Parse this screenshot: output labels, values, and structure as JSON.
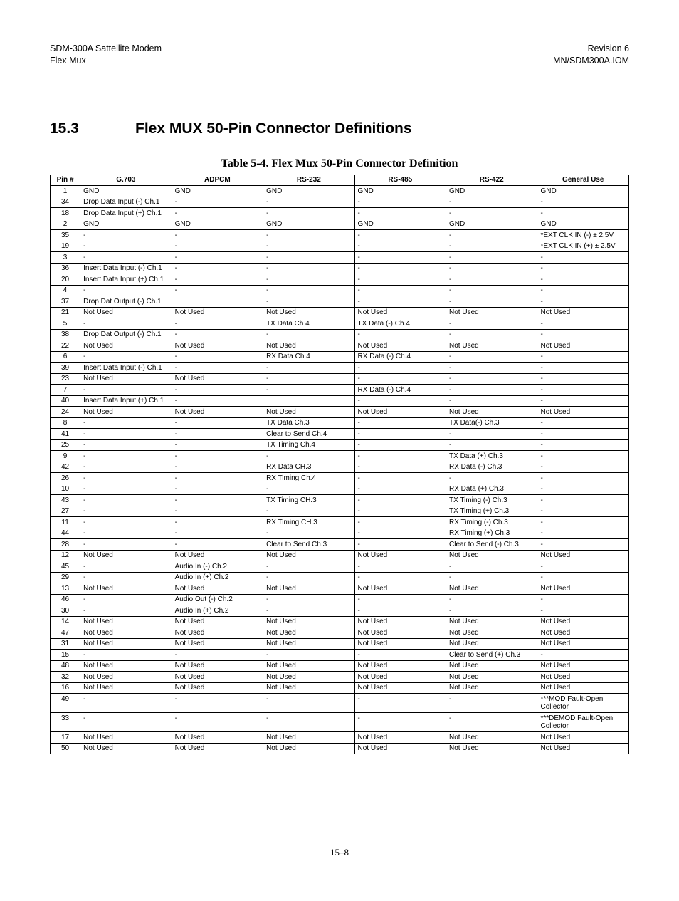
{
  "header": {
    "left1": "SDM-300A Sattellite Modem",
    "right1": "Revision 6",
    "left2": "Flex Mux",
    "right2": "MN/SDM300A.IOM"
  },
  "section": {
    "number": "15.3",
    "title": "Flex MUX 50-Pin Connector Definitions"
  },
  "tableCaption": "Table 5-4.  Flex Mux 50-Pin Connector Definition",
  "columns": [
    "Pin #",
    "G.703",
    "ADPCM",
    "RS-232",
    "RS-485",
    "RS-422",
    "General Use"
  ],
  "rows": [
    [
      "1",
      "GND",
      "GND",
      "GND",
      "GND",
      "GND",
      "GND"
    ],
    [
      "34",
      "Drop Data Input (-) Ch.1",
      "-",
      "-",
      "-",
      "-",
      "-"
    ],
    [
      "18",
      "Drop Data Input (+) Ch.1",
      "-",
      "-",
      "-",
      "-",
      "-"
    ],
    [
      "2",
      "GND",
      "GND",
      "GND",
      "GND",
      "GND",
      "GND"
    ],
    [
      "35",
      "-",
      "-",
      "-",
      "-",
      "-",
      "*EXT CLK IN (-) ± 2.5V"
    ],
    [
      "19",
      "-",
      "-",
      "-",
      "-",
      "-",
      "*EXT CLK IN (+) ± 2.5V"
    ],
    [
      "3",
      "-",
      "-",
      "-",
      "-",
      "-",
      "-"
    ],
    [
      "36",
      "Insert Data Input (-) Ch.1",
      "-",
      "-",
      "-",
      "-",
      "-"
    ],
    [
      "20",
      "Insert Data Input (+) Ch.1",
      "-",
      "-",
      "-",
      "-",
      "-"
    ],
    [
      "4",
      "-",
      "-",
      "-",
      "-",
      "-",
      "-"
    ],
    [
      "37",
      "Drop Dat Output (-) Ch.1",
      "",
      "-",
      "-",
      "-",
      "-"
    ],
    [
      "21",
      "Not Used",
      "Not Used",
      "Not Used",
      "Not Used",
      "Not Used",
      "Not Used"
    ],
    [
      "5",
      "-",
      "-",
      "TX Data Ch 4",
      "TX Data (-) Ch.4",
      "-",
      "-"
    ],
    [
      "38",
      "Drop Dat Output (-) Ch.1",
      "-",
      "-",
      "-",
      "-",
      "-"
    ],
    [
      "22",
      "Not Used",
      "Not Used",
      "Not Used",
      "Not Used",
      "Not Used",
      "Not Used"
    ],
    [
      "6",
      "-",
      "-",
      "RX Data Ch.4",
      "RX Data (-) Ch.4",
      "-",
      "-"
    ],
    [
      "39",
      "Insert Data Input (-) Ch.1",
      "-",
      "-",
      "-",
      "-",
      "-"
    ],
    [
      "23",
      "Not Used",
      "Not Used",
      "-",
      "-",
      "-",
      "-"
    ],
    [
      "7",
      "-",
      "-",
      "-",
      "RX Data (-) Ch.4",
      "-",
      "-"
    ],
    [
      "40",
      "Insert Data Input (+) Ch.1",
      "-",
      "",
      "-",
      "-",
      "-"
    ],
    [
      "24",
      "Not Used",
      "Not Used",
      "Not Used",
      "Not Used",
      "Not Used",
      "Not Used"
    ],
    [
      "8",
      "-",
      "-",
      "TX Data Ch.3",
      "-",
      "TX Data(-) Ch.3",
      "-"
    ],
    [
      "41",
      "-",
      "-",
      "Clear to Send Ch.4",
      "-",
      "-",
      "-"
    ],
    [
      "25",
      "-",
      "-",
      "TX Timing Ch.4",
      "-",
      "-",
      "-"
    ],
    [
      "9",
      "-",
      "-",
      "-",
      "-",
      "TX Data (+) Ch.3",
      "-"
    ],
    [
      "42",
      "-",
      "-",
      "RX Data CH.3",
      "-",
      "RX Data (-) Ch.3",
      "-"
    ],
    [
      "26",
      "-",
      "-",
      "RX Timing Ch.4",
      "-",
      "-",
      "-"
    ],
    [
      "10",
      "-",
      "-",
      "-",
      "-",
      "RX Data (+) Ch.3",
      "-"
    ],
    [
      "43",
      "-",
      "-",
      "TX Timing CH.3",
      "-",
      "TX Timing (-) Ch.3",
      "-"
    ],
    [
      "27",
      "-",
      "-",
      "-",
      "-",
      "TX Timing (+) Ch.3",
      "-"
    ],
    [
      "11",
      "-",
      "-",
      "RX Timing CH.3",
      "-",
      "RX Timing (-) Ch.3",
      "-"
    ],
    [
      "44",
      "-",
      "-",
      "-",
      "-",
      "RX Timing (+) Ch.3",
      "-"
    ],
    [
      "28",
      "-",
      "-",
      "Clear to Send Ch.3",
      "-",
      "Clear to Send (-) Ch.3",
      "-"
    ],
    [
      "12",
      "Not Used",
      "Not Used",
      "Not Used",
      "Not Used",
      "Not Used",
      "Not Used"
    ],
    [
      "45",
      "-",
      "Audio In (-) Ch.2",
      "-",
      "-",
      "-",
      "-"
    ],
    [
      "29",
      "-",
      "Audio In (+) Ch.2",
      "-",
      "-",
      "-",
      "-"
    ],
    [
      "13",
      "Not Used",
      "Not Used",
      "Not Used",
      "Not Used",
      "Not Used",
      "Not Used"
    ],
    [
      "46",
      "-",
      "Audio Out (-) Ch.2",
      "-",
      "-",
      "-",
      "-"
    ],
    [
      "30",
      "-",
      "Audio In (+) Ch.2",
      "-",
      "-",
      "-",
      "-"
    ],
    [
      "14",
      "Not Used",
      "Not Used",
      "Not Used",
      "Not Used",
      "Not Used",
      "Not Used"
    ],
    [
      "47",
      "Not Used",
      "Not Used",
      "Not Used",
      "Not Used",
      "Not Used",
      "Not Used"
    ],
    [
      "31",
      "Not Used",
      "Not Used",
      "Not Used",
      "Not Used",
      "Not Used",
      "Not Used"
    ],
    [
      "15",
      "-",
      "-",
      "-",
      "-",
      "Clear to Send (+) Ch.3",
      "-"
    ],
    [
      "48",
      "Not Used",
      "Not Used",
      "Not Used",
      "Not Used",
      "Not Used",
      "Not Used"
    ],
    [
      "32",
      "Not Used",
      "Not Used",
      "Not Used",
      "Not Used",
      "Not Used",
      "Not Used"
    ],
    [
      "16",
      "Not Used",
      "Not Used",
      "Not Used",
      "Not Used",
      "Not Used",
      "Not Used"
    ],
    [
      "49",
      "-",
      "-",
      "-",
      "-",
      "-",
      "***MOD Fault-Open Collector"
    ],
    [
      "33",
      "-",
      "-",
      "-",
      "-",
      "-",
      "***DEMOD Fault-Open Collector"
    ],
    [
      "17",
      "Not Used",
      "Not Used",
      "Not Used",
      "Not Used",
      "Not Used",
      "Not Used"
    ],
    [
      "50",
      "Not Used",
      "Not Used",
      "Not Used",
      "Not Used",
      "Not Used",
      "Not Used"
    ]
  ],
  "footer": "15–8"
}
